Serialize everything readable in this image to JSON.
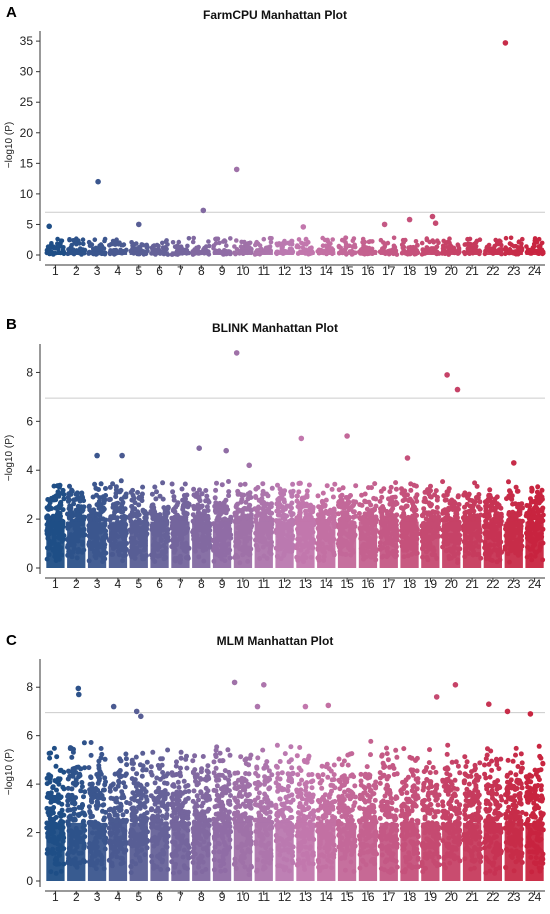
{
  "colors": {
    "start": "#1f4e86",
    "mid": "#c27bb2",
    "end": "#c8243f",
    "threshold_line": "#cccccc"
  },
  "chart_data": [
    {
      "panel_label": "A",
      "type": "scatter",
      "title": "FarmCPU Manhattan Plot",
      "ylabel": "−log10 (P)",
      "xlabel": "",
      "categories": [
        "1",
        "2",
        "3",
        "4",
        "5",
        "6",
        "7",
        "8",
        "9",
        "10",
        "11",
        "12",
        "13",
        "14",
        "15",
        "16",
        "17",
        "18",
        "19",
        "20",
        "21",
        "22",
        "23",
        "24"
      ],
      "ylim": [
        0,
        36
      ],
      "yticks": [
        0,
        5,
        10,
        15,
        20,
        25,
        30,
        35
      ],
      "threshold": 7,
      "background": {
        "base": 0.6,
        "span": 2.4
      },
      "highlights": [
        {
          "chr": 1,
          "pos": 0.2,
          "y": 4.7
        },
        {
          "chr": 3,
          "pos": 0.55,
          "y": 12.0
        },
        {
          "chr": 5,
          "pos": 0.5,
          "y": 5.0
        },
        {
          "chr": 8,
          "pos": 0.6,
          "y": 7.3
        },
        {
          "chr": 10,
          "pos": 0.2,
          "y": 14.0
        },
        {
          "chr": 13,
          "pos": 0.4,
          "y": 4.6
        },
        {
          "chr": 17,
          "pos": 0.3,
          "y": 5.0
        },
        {
          "chr": 18,
          "pos": 0.5,
          "y": 5.8
        },
        {
          "chr": 19,
          "pos": 0.6,
          "y": 6.3
        },
        {
          "chr": 19,
          "pos": 0.75,
          "y": 5.2
        },
        {
          "chr": 23,
          "pos": 0.1,
          "y": 34.7
        }
      ]
    },
    {
      "panel_label": "B",
      "type": "scatter",
      "title": "BLINK Manhattan Plot",
      "ylabel": "−log10 (P)",
      "xlabel": "",
      "categories": [
        "1",
        "2",
        "3",
        "4",
        "5",
        "6",
        "7",
        "8",
        "9",
        "10",
        "11",
        "12",
        "13",
        "14",
        "15",
        "16",
        "17",
        "18",
        "19",
        "20",
        "21",
        "22",
        "23",
        "24"
      ],
      "ylim": [
        0,
        9
      ],
      "yticks": [
        0,
        2,
        4,
        6,
        8
      ],
      "threshold": 6.95,
      "background": {
        "base": 1.9,
        "span": 1.7
      },
      "highlights": [
        {
          "chr": 3,
          "pos": 0.5,
          "y": 4.6
        },
        {
          "chr": 4,
          "pos": 0.7,
          "y": 4.6
        },
        {
          "chr": 8,
          "pos": 0.4,
          "y": 4.9
        },
        {
          "chr": 9,
          "pos": 0.7,
          "y": 4.8
        },
        {
          "chr": 10,
          "pos": 0.2,
          "y": 8.8
        },
        {
          "chr": 10,
          "pos": 0.8,
          "y": 4.2
        },
        {
          "chr": 13,
          "pos": 0.3,
          "y": 5.3
        },
        {
          "chr": 15,
          "pos": 0.5,
          "y": 5.4
        },
        {
          "chr": 18,
          "pos": 0.4,
          "y": 4.5
        },
        {
          "chr": 20,
          "pos": 0.3,
          "y": 7.9
        },
        {
          "chr": 20,
          "pos": 0.8,
          "y": 7.3
        },
        {
          "chr": 23,
          "pos": 0.5,
          "y": 4.3
        }
      ]
    },
    {
      "panel_label": "C",
      "type": "scatter",
      "title": "MLM Manhattan Plot",
      "ylabel": "−log10 (P)",
      "xlabel": "",
      "categories": [
        "1",
        "2",
        "3",
        "4",
        "5",
        "6",
        "7",
        "8",
        "9",
        "10",
        "11",
        "12",
        "13",
        "14",
        "15",
        "16",
        "17",
        "18",
        "19",
        "20",
        "21",
        "22",
        "23",
        "24"
      ],
      "ylim": [
        0,
        9
      ],
      "yticks": [
        0,
        2,
        4,
        6,
        8
      ],
      "threshold": 6.95,
      "background": {
        "base": 2.4,
        "span": 3.4
      },
      "highlights": [
        {
          "chr": 2,
          "pos": 0.6,
          "y": 7.95
        },
        {
          "chr": 2,
          "pos": 0.62,
          "y": 7.7
        },
        {
          "chr": 4,
          "pos": 0.3,
          "y": 7.2
        },
        {
          "chr": 5,
          "pos": 0.4,
          "y": 7.0
        },
        {
          "chr": 5,
          "pos": 0.6,
          "y": 6.8
        },
        {
          "chr": 10,
          "pos": 0.1,
          "y": 8.2
        },
        {
          "chr": 11,
          "pos": 0.5,
          "y": 8.1
        },
        {
          "chr": 11,
          "pos": 0.2,
          "y": 7.2
        },
        {
          "chr": 13,
          "pos": 0.5,
          "y": 7.2
        },
        {
          "chr": 14,
          "pos": 0.6,
          "y": 7.25
        },
        {
          "chr": 19,
          "pos": 0.8,
          "y": 7.6
        },
        {
          "chr": 20,
          "pos": 0.7,
          "y": 8.1
        },
        {
          "chr": 22,
          "pos": 0.3,
          "y": 7.3
        },
        {
          "chr": 23,
          "pos": 0.2,
          "y": 7.0
        },
        {
          "chr": 24,
          "pos": 0.3,
          "y": 6.9
        }
      ]
    }
  ]
}
